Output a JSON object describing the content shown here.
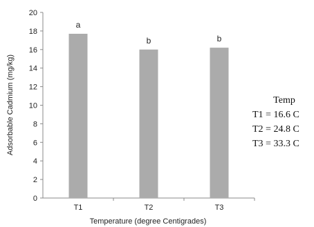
{
  "chart_data": {
    "type": "bar",
    "title": "",
    "xlabel": "Temperature (degree Centigrades)",
    "ylabel": "Adsorbable Cadmium (mg/kg)",
    "ylim": [
      0,
      20
    ],
    "yticks": [
      "0",
      "2",
      "4",
      "6",
      "8",
      "10",
      "12",
      "14",
      "16",
      "18",
      "20"
    ],
    "categories": [
      "T1",
      "T2",
      "T3"
    ],
    "values": [
      17.7,
      16.0,
      16.2
    ],
    "significance_letters": [
      "a",
      "b",
      "b"
    ],
    "grid": false,
    "bar_color": "#ababab"
  },
  "annotation": {
    "title": "Temp",
    "lines": [
      "T1 = 16.6 C",
      "T2 = 24.8 C",
      "T3 = 33.3 C"
    ]
  }
}
